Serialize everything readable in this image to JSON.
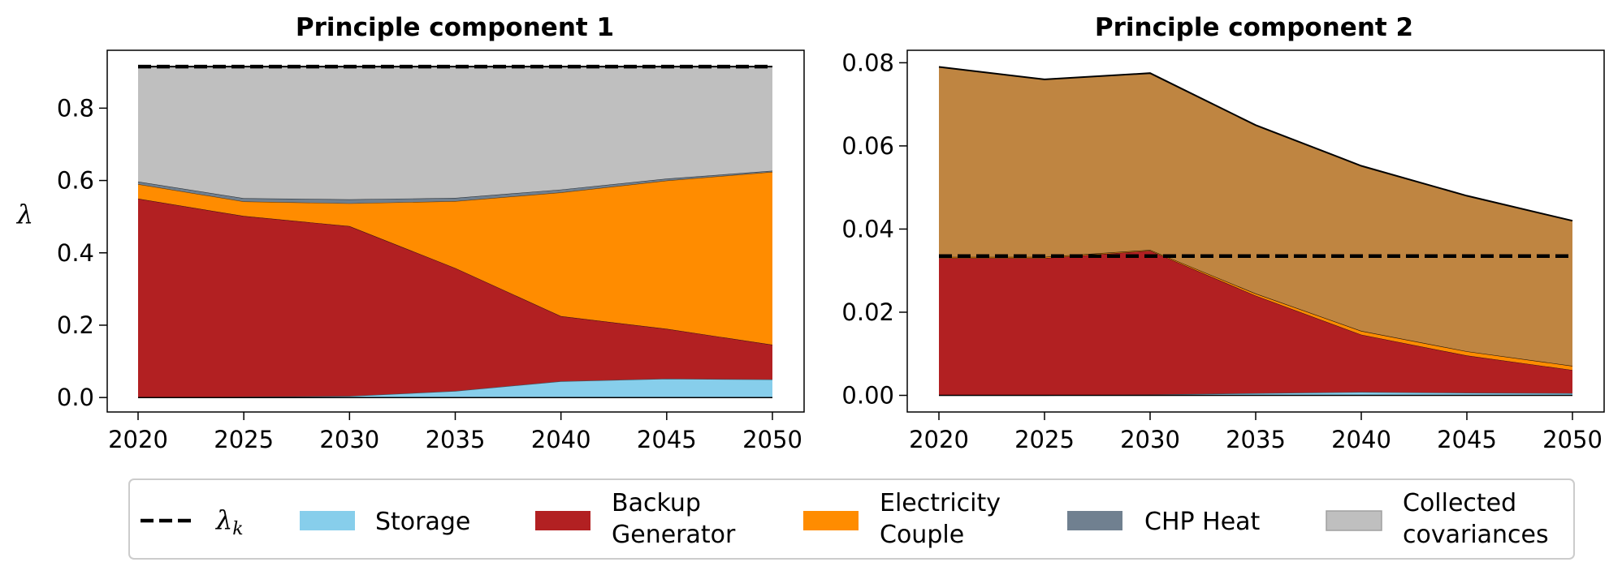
{
  "chart_data": [
    {
      "type": "area",
      "title": "Principle component 1",
      "ylabel": "λ",
      "xlabel": "",
      "x": [
        2020,
        2025,
        2030,
        2035,
        2040,
        2045,
        2050
      ],
      "xticks": [
        "2020",
        "2025",
        "2030",
        "2035",
        "2040",
        "2045",
        "2050"
      ],
      "yticks": [
        "0.0",
        "0.2",
        "0.4",
        "0.6",
        "0.8"
      ],
      "ylim": [
        -0.04,
        0.96
      ],
      "stacked": true,
      "series": [
        {
          "name": "Storage",
          "color": "#87ceeb",
          "values": [
            0.0,
            0.002,
            0.004,
            0.018,
            0.045,
            0.052,
            0.05
          ]
        },
        {
          "name": "Backup Generator",
          "color": "#b22022",
          "values": [
            0.55,
            0.5,
            0.47,
            0.34,
            0.18,
            0.138,
            0.096
          ]
        },
        {
          "name": "Electricity Couple",
          "color": "#ff8c00",
          "values": [
            0.04,
            0.04,
            0.063,
            0.185,
            0.342,
            0.41,
            0.478
          ]
        },
        {
          "name": "CHP Heat",
          "color": "#708090",
          "values": [
            0.007,
            0.009,
            0.011,
            0.009,
            0.008,
            0.005,
            0.003
          ]
        },
        {
          "name": "Collected covariances",
          "color": "#bfbfbf",
          "values": [
            0.318,
            0.364,
            0.367,
            0.363,
            0.34,
            0.31,
            0.288
          ]
        }
      ],
      "lambda_k": 0.915
    },
    {
      "type": "area",
      "title": "Principle component 2",
      "ylabel": "",
      "xlabel": "",
      "x": [
        2020,
        2025,
        2030,
        2035,
        2040,
        2045,
        2050
      ],
      "xticks": [
        "2020",
        "2025",
        "2030",
        "2035",
        "2040",
        "2045",
        "2050"
      ],
      "yticks": [
        "0.00",
        "0.02",
        "0.04",
        "0.06",
        "0.08"
      ],
      "ylim": [
        -0.004,
        0.083
      ],
      "stacked": true,
      "series": [
        {
          "name": "Storage",
          "color": "#87ceeb",
          "values": [
            0.0,
            0.0,
            0.0002,
            0.0005,
            0.0008,
            0.0006,
            0.0005
          ]
        },
        {
          "name": "Backup Generator",
          "color": "#b22022",
          "values": [
            0.033,
            0.033,
            0.0346,
            0.0235,
            0.0138,
            0.009,
            0.0056
          ]
        },
        {
          "name": "Electricity Couple",
          "color": "#ff8c00",
          "values": [
            0.0003,
            0.0003,
            0.0002,
            0.0005,
            0.0009,
            0.001,
            0.001
          ]
        },
        {
          "name": "CHP Heat",
          "color": "#a0522d",
          "values": [
            0.0,
            0.0,
            0.0,
            0.0,
            0.0,
            0.0,
            0.0
          ]
        },
        {
          "name": "Collected covariances",
          "color": "#bf8541",
          "values": [
            0.0457,
            0.0427,
            0.0425,
            0.0405,
            0.0397,
            0.0374,
            0.0349
          ]
        }
      ],
      "lambda_k": 0.0335
    }
  ],
  "legend": {
    "items": [
      {
        "key": "lambda",
        "symbol": "λ",
        "subscript": "k",
        "type": "dashed-line"
      },
      {
        "key": "storage",
        "label_lines": [
          "Storage"
        ],
        "color": "#87ceeb"
      },
      {
        "key": "backup",
        "label_lines": [
          "Backup",
          "Generator"
        ],
        "color": "#b22022"
      },
      {
        "key": "elec",
        "label_lines": [
          "Electricity",
          "Couple"
        ],
        "color": "#ff8c00"
      },
      {
        "key": "chp",
        "label_lines": [
          "CHP Heat"
        ],
        "color": "#708090"
      },
      {
        "key": "cov",
        "label_lines": [
          "Collected",
          "covariances"
        ],
        "color": "#bfbfbf"
      }
    ]
  }
}
